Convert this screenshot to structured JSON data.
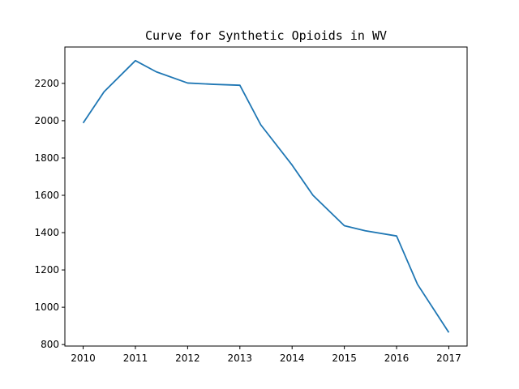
{
  "chart_data": {
    "type": "line",
    "title": "Curve for Synthetic Opioids in WV",
    "xlabel": "",
    "ylabel": "",
    "x": [
      2010,
      2010.4,
      2011,
      2011.4,
      2012,
      2012.5,
      2013,
      2013.4,
      2014,
      2014.4,
      2015,
      2015.4,
      2016,
      2016.4,
      2017
    ],
    "series": [
      {
        "values": [
          1988,
          2155,
          2322,
          2262,
          2202,
          2195,
          2190,
          1978,
          1762,
          1600,
          1437,
          1410,
          1382,
          1123,
          865
        ]
      }
    ],
    "xlim": [
      2009.65,
      2017.35
    ],
    "ylim": [
      792,
      2395
    ],
    "xticks": [
      "2010",
      "2011",
      "2012",
      "2013",
      "2014",
      "2015",
      "2016",
      "2017"
    ],
    "yticks": [
      "800",
      "1000",
      "1200",
      "1400",
      "1600",
      "1800",
      "2000",
      "2200"
    ],
    "grid": false,
    "line_color": "#1f77b4"
  }
}
